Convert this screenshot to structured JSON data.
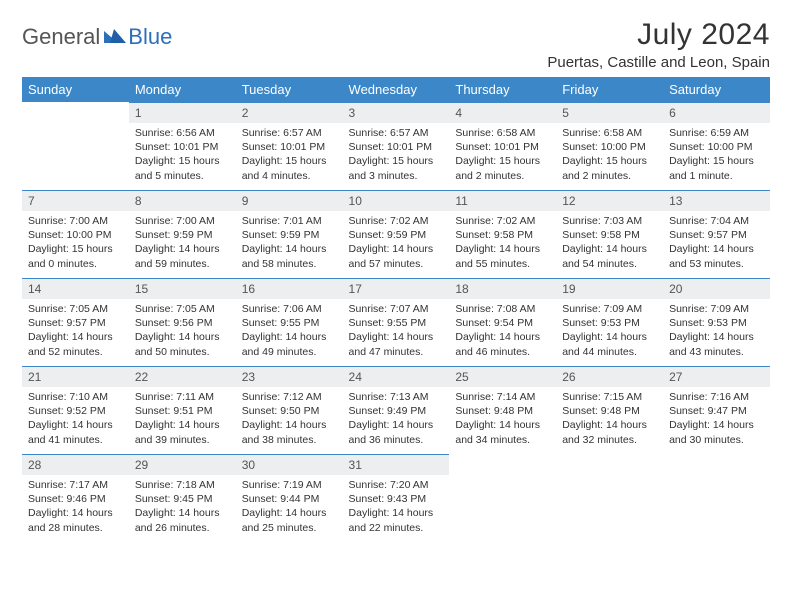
{
  "brand": {
    "part1": "General",
    "part2": "Blue"
  },
  "title": "July 2024",
  "location": "Puertas, Castille and Leon, Spain",
  "colors": {
    "header_bg": "#3b87c8",
    "header_text": "#ffffff",
    "daynum_bg": "#eceeef",
    "daynum_border": "#3b87c8",
    "body_text": "#333333",
    "brand_gray": "#555555",
    "brand_blue": "#2c6fbb",
    "page_bg": "#ffffff"
  },
  "typography": {
    "title_fontsize": 30,
    "location_fontsize": 15,
    "weekday_fontsize": 13,
    "daynum_fontsize": 12,
    "body_fontsize": 10.5
  },
  "layout": {
    "columns": 7,
    "rows": 5,
    "start_weekday": "Sunday"
  },
  "weekdays": [
    "Sunday",
    "Monday",
    "Tuesday",
    "Wednesday",
    "Thursday",
    "Friday",
    "Saturday"
  ],
  "weeks": [
    [
      null,
      {
        "n": "1",
        "sr": "6:56 AM",
        "ss": "10:01 PM",
        "dl": "15 hours and 5 minutes."
      },
      {
        "n": "2",
        "sr": "6:57 AM",
        "ss": "10:01 PM",
        "dl": "15 hours and 4 minutes."
      },
      {
        "n": "3",
        "sr": "6:57 AM",
        "ss": "10:01 PM",
        "dl": "15 hours and 3 minutes."
      },
      {
        "n": "4",
        "sr": "6:58 AM",
        "ss": "10:01 PM",
        "dl": "15 hours and 2 minutes."
      },
      {
        "n": "5",
        "sr": "6:58 AM",
        "ss": "10:00 PM",
        "dl": "15 hours and 2 minutes."
      },
      {
        "n": "6",
        "sr": "6:59 AM",
        "ss": "10:00 PM",
        "dl": "15 hours and 1 minute."
      }
    ],
    [
      {
        "n": "7",
        "sr": "7:00 AM",
        "ss": "10:00 PM",
        "dl": "15 hours and 0 minutes."
      },
      {
        "n": "8",
        "sr": "7:00 AM",
        "ss": "9:59 PM",
        "dl": "14 hours and 59 minutes."
      },
      {
        "n": "9",
        "sr": "7:01 AM",
        "ss": "9:59 PM",
        "dl": "14 hours and 58 minutes."
      },
      {
        "n": "10",
        "sr": "7:02 AM",
        "ss": "9:59 PM",
        "dl": "14 hours and 57 minutes."
      },
      {
        "n": "11",
        "sr": "7:02 AM",
        "ss": "9:58 PM",
        "dl": "14 hours and 55 minutes."
      },
      {
        "n": "12",
        "sr": "7:03 AM",
        "ss": "9:58 PM",
        "dl": "14 hours and 54 minutes."
      },
      {
        "n": "13",
        "sr": "7:04 AM",
        "ss": "9:57 PM",
        "dl": "14 hours and 53 minutes."
      }
    ],
    [
      {
        "n": "14",
        "sr": "7:05 AM",
        "ss": "9:57 PM",
        "dl": "14 hours and 52 minutes."
      },
      {
        "n": "15",
        "sr": "7:05 AM",
        "ss": "9:56 PM",
        "dl": "14 hours and 50 minutes."
      },
      {
        "n": "16",
        "sr": "7:06 AM",
        "ss": "9:55 PM",
        "dl": "14 hours and 49 minutes."
      },
      {
        "n": "17",
        "sr": "7:07 AM",
        "ss": "9:55 PM",
        "dl": "14 hours and 47 minutes."
      },
      {
        "n": "18",
        "sr": "7:08 AM",
        "ss": "9:54 PM",
        "dl": "14 hours and 46 minutes."
      },
      {
        "n": "19",
        "sr": "7:09 AM",
        "ss": "9:53 PM",
        "dl": "14 hours and 44 minutes."
      },
      {
        "n": "20",
        "sr": "7:09 AM",
        "ss": "9:53 PM",
        "dl": "14 hours and 43 minutes."
      }
    ],
    [
      {
        "n": "21",
        "sr": "7:10 AM",
        "ss": "9:52 PM",
        "dl": "14 hours and 41 minutes."
      },
      {
        "n": "22",
        "sr": "7:11 AM",
        "ss": "9:51 PM",
        "dl": "14 hours and 39 minutes."
      },
      {
        "n": "23",
        "sr": "7:12 AM",
        "ss": "9:50 PM",
        "dl": "14 hours and 38 minutes."
      },
      {
        "n": "24",
        "sr": "7:13 AM",
        "ss": "9:49 PM",
        "dl": "14 hours and 36 minutes."
      },
      {
        "n": "25",
        "sr": "7:14 AM",
        "ss": "9:48 PM",
        "dl": "14 hours and 34 minutes."
      },
      {
        "n": "26",
        "sr": "7:15 AM",
        "ss": "9:48 PM",
        "dl": "14 hours and 32 minutes."
      },
      {
        "n": "27",
        "sr": "7:16 AM",
        "ss": "9:47 PM",
        "dl": "14 hours and 30 minutes."
      }
    ],
    [
      {
        "n": "28",
        "sr": "7:17 AM",
        "ss": "9:46 PM",
        "dl": "14 hours and 28 minutes."
      },
      {
        "n": "29",
        "sr": "7:18 AM",
        "ss": "9:45 PM",
        "dl": "14 hours and 26 minutes."
      },
      {
        "n": "30",
        "sr": "7:19 AM",
        "ss": "9:44 PM",
        "dl": "14 hours and 25 minutes."
      },
      {
        "n": "31",
        "sr": "7:20 AM",
        "ss": "9:43 PM",
        "dl": "14 hours and 22 minutes."
      },
      null,
      null,
      null
    ]
  ],
  "labels": {
    "sunrise": "Sunrise:",
    "sunset": "Sunset:",
    "daylight": "Daylight:"
  }
}
